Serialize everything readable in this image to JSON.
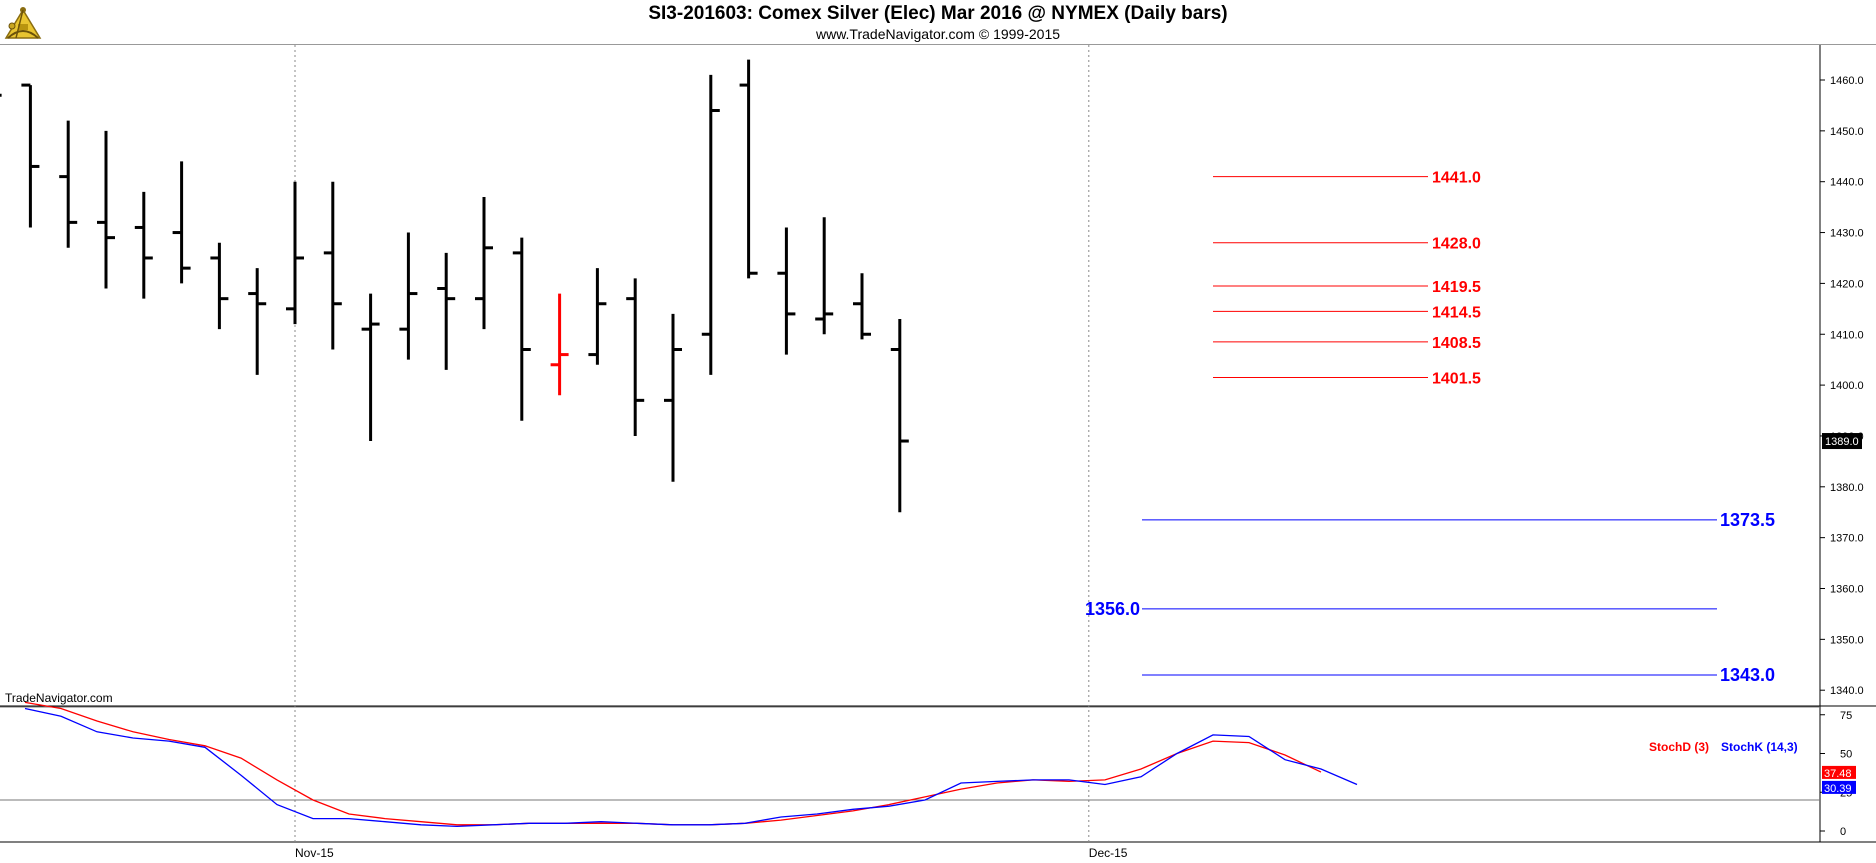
{
  "header": {
    "title": "SI3-201603:  Comex Silver (Elec) Mar 2016 @ NYMEX  (Daily bars)",
    "subtitle": "www.TradeNavigator.com © 1999-2015"
  },
  "watermark": "TradeNavigator.com",
  "logo": {
    "icon": "sextant-logo-icon"
  },
  "colors": {
    "bars": "#000000",
    "highlight_bar": "#ff0000",
    "resistance": "#ff0000",
    "support": "#0000ff",
    "stoch_d": "#ff0000",
    "stoch_k": "#0000ff",
    "grid": "#888888"
  },
  "chart_data": [
    {
      "type": "ohlc",
      "yaxis_ticks": [
        "1460.0",
        "1450.0",
        "1440.0",
        "1430.0",
        "1420.0",
        "1410.0",
        "1400.0",
        "1390.0",
        "1380.0",
        "1370.0",
        "1360.0",
        "1350.0",
        "1340.0"
      ],
      "yaxis_side": "right",
      "ylim": [
        1336,
        1467
      ],
      "xaxis_ticks": [
        {
          "label": "Nov-15",
          "index": 0
        },
        {
          "label": "Dec-15",
          "index": 21
        }
      ],
      "last_price_label": "1389.0",
      "bars": [
        {
          "i": -8,
          "o": null,
          "h": 1468,
          "l": 1444,
          "c": 1457
        },
        {
          "i": -7,
          "o": 1459,
          "h": 1459,
          "l": 1431,
          "c": 1443
        },
        {
          "i": -6,
          "o": 1441,
          "h": 1452,
          "l": 1427,
          "c": 1432
        },
        {
          "i": -5,
          "o": 1432,
          "h": 1450,
          "l": 1419,
          "c": 1429
        },
        {
          "i": -4,
          "o": 1431,
          "h": 1438,
          "l": 1417,
          "c": 1425
        },
        {
          "i": -3,
          "o": 1430,
          "h": 1444,
          "l": 1420,
          "c": 1423
        },
        {
          "i": -2,
          "o": 1425,
          "h": 1428,
          "l": 1411,
          "c": 1417
        },
        {
          "i": -1,
          "o": 1418,
          "h": 1423,
          "l": 1402,
          "c": 1416
        },
        {
          "i": 0,
          "o": 1415,
          "h": 1440,
          "l": 1412,
          "c": 1425
        },
        {
          "i": 1,
          "o": 1426,
          "h": 1440,
          "l": 1407,
          "c": 1416
        },
        {
          "i": 2,
          "o": 1411,
          "h": 1418,
          "l": 1389,
          "c": 1412
        },
        {
          "i": 3,
          "o": 1411,
          "h": 1430,
          "l": 1405,
          "c": 1418
        },
        {
          "i": 4,
          "o": 1419,
          "h": 1426,
          "l": 1403,
          "c": 1417
        },
        {
          "i": 5,
          "o": 1417,
          "h": 1437,
          "l": 1411,
          "c": 1427
        },
        {
          "i": 6,
          "o": 1426,
          "h": 1429,
          "l": 1393,
          "c": 1407
        },
        {
          "i": 7,
          "o": 1404,
          "h": 1418,
          "l": 1398,
          "c": 1406,
          "highlight": true
        },
        {
          "i": 8,
          "o": 1406,
          "h": 1423,
          "l": 1404,
          "c": 1416
        },
        {
          "i": 9,
          "o": 1417,
          "h": 1421,
          "l": 1390,
          "c": 1397
        },
        {
          "i": 10,
          "o": 1397,
          "h": 1414,
          "l": 1381,
          "c": 1407
        },
        {
          "i": 11,
          "o": 1410,
          "h": 1461,
          "l": 1402,
          "c": 1454
        },
        {
          "i": 12,
          "o": 1459,
          "h": 1464,
          "l": 1421,
          "c": 1422
        },
        {
          "i": 13,
          "o": 1422,
          "h": 1431,
          "l": 1406,
          "c": 1414
        },
        {
          "i": 14,
          "o": 1413,
          "h": 1433,
          "l": 1410,
          "c": 1414
        },
        {
          "i": 15,
          "o": 1416,
          "h": 1422,
          "l": 1409,
          "c": 1410
        },
        {
          "i": 16,
          "o": 1407,
          "h": 1413,
          "l": 1375,
          "c": 1389
        }
      ],
      "resistance_levels": [
        {
          "value": 1441.0,
          "label": "1441.0"
        },
        {
          "value": 1428.0,
          "label": "1428.0"
        },
        {
          "value": 1419.5,
          "label": "1419.5"
        },
        {
          "value": 1414.5,
          "label": "1414.5"
        },
        {
          "value": 1408.5,
          "label": "1408.5"
        },
        {
          "value": 1401.5,
          "label": "1401.5"
        }
      ],
      "support_levels": [
        {
          "value": 1373.5,
          "label": "1373.5",
          "label_side": "right"
        },
        {
          "value": 1356.0,
          "label": "1356.0",
          "label_side": "left"
        },
        {
          "value": 1343.0,
          "label": "1343.0",
          "label_side": "right"
        }
      ]
    },
    {
      "type": "line",
      "yaxis_ticks": [
        "75",
        "50",
        "25",
        "0"
      ],
      "ylim": [
        -5,
        85
      ],
      "reference_lines": [
        80,
        20
      ],
      "legend": [
        "StochD (3)",
        "StochK (14,3)"
      ],
      "legend_position": "top-right",
      "value_labels": {
        "stoch_d": "37.48",
        "stoch_k": "30.39"
      },
      "series": [
        {
          "name": "StochD (3)",
          "values": [
            83,
            79,
            71,
            64,
            59,
            55,
            47,
            33,
            20,
            11,
            8,
            6,
            4,
            4,
            5,
            5,
            5,
            5,
            4,
            4,
            5,
            7,
            10,
            13,
            17,
            22,
            27,
            31,
            33,
            32,
            33,
            40,
            50,
            58,
            57,
            49,
            38
          ]
        },
        {
          "name": "StochK (14,3)",
          "values": [
            79,
            74,
            64,
            60,
            58,
            54,
            36,
            17,
            8,
            8,
            6,
            4,
            3,
            4,
            5,
            5,
            6,
            5,
            4,
            4,
            5,
            9,
            11,
            14,
            16,
            20,
            31,
            32,
            33,
            33,
            30,
            35,
            50,
            62,
            61,
            46,
            40,
            30
          ]
        }
      ]
    }
  ]
}
